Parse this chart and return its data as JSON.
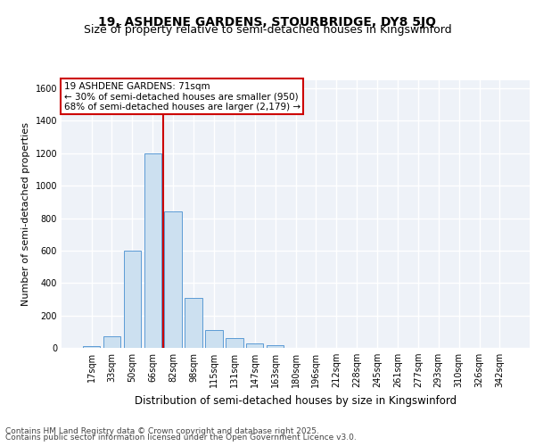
{
  "title": "19, ASHDENE GARDENS, STOURBRIDGE, DY8 5JQ",
  "subtitle": "Size of property relative to semi-detached houses in Kingswinford",
  "xlabel": "Distribution of semi-detached houses by size in Kingswinford",
  "ylabel": "Number of semi-detached properties",
  "categories": [
    "17sqm",
    "33sqm",
    "50sqm",
    "66sqm",
    "82sqm",
    "98sqm",
    "115sqm",
    "131sqm",
    "147sqm",
    "163sqm",
    "180sqm",
    "196sqm",
    "212sqm",
    "228sqm",
    "245sqm",
    "261sqm",
    "277sqm",
    "293sqm",
    "310sqm",
    "326sqm",
    "342sqm"
  ],
  "values": [
    10,
    70,
    600,
    1200,
    840,
    310,
    110,
    60,
    25,
    15,
    0,
    0,
    0,
    0,
    0,
    0,
    0,
    0,
    0,
    0,
    0
  ],
  "bar_color": "#cce0f0",
  "bar_edge_color": "#5b9bd5",
  "vline_x": 3.52,
  "vline_color": "#cc0000",
  "annotation_text": "19 ASHDENE GARDENS: 71sqm\n← 30% of semi-detached houses are smaller (950)\n68% of semi-detached houses are larger (2,179) →",
  "annotation_box_color": "#ffffff",
  "annotation_box_edge": "#cc0000",
  "ylim": [
    0,
    1650
  ],
  "yticks": [
    0,
    200,
    400,
    600,
    800,
    1000,
    1200,
    1400,
    1600
  ],
  "background_color": "#eef2f8",
  "footer_line1": "Contains HM Land Registry data © Crown copyright and database right 2025.",
  "footer_line2": "Contains public sector information licensed under the Open Government Licence v3.0.",
  "grid_color": "#ffffff",
  "title_fontsize": 10,
  "subtitle_fontsize": 9,
  "tick_fontsize": 7,
  "ylabel_fontsize": 8,
  "xlabel_fontsize": 8.5,
  "annotation_fontsize": 7.5,
  "footer_fontsize": 6.5
}
